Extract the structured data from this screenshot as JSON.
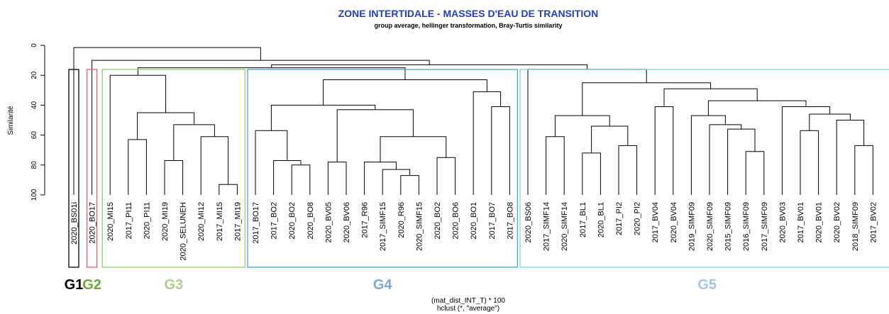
{
  "chart_data": {
    "type": "dendrogram",
    "title": "ZONE INTERTIDALE - MASSES D'EAU DE TRANSITION",
    "subtitle": "group average, hellinger transformation, Bray-Turtis similarity",
    "ylabel": "Similarité",
    "xlabel": "(mat_dist_INT_T) * 100",
    "xlabel2": "hclust (*, \"average\")",
    "ylim": [
      0,
      100
    ],
    "yticks": [
      0,
      20,
      40,
      60,
      80,
      100
    ],
    "leaves": [
      "2020_BS01i",
      "2020_BO17",
      "2020_MI15",
      "2017_PI11",
      "2020_PI11",
      "2020_MI19",
      "2020_SELUNEH",
      "2020_MI12",
      "2017_MI15",
      "2017_MI19",
      "2017_BO17",
      "2017_BO2",
      "2020_BO2",
      "2020_BO8",
      "2020_BV05",
      "2020_BV06",
      "2017_R96",
      "2017_SIMF15",
      "2020_R96",
      "2020_SIMF15",
      "2020_BO2",
      "2020_BO6",
      "2020_BO1",
      "2017_BO7",
      "2017_BO8",
      "2020_BS06",
      "2017_SIMF14",
      "2020_SIMF14",
      "2017_BL1",
      "2020_BL1",
      "2017_PI2",
      "2020_PI2",
      "2017_BV04",
      "2020_BV04",
      "2019_SIMF09",
      "2020_SIMF09",
      "2015_SIMF09",
      "2016_SIMF09",
      "2017_SIMF09",
      "2020_BV03",
      "2017_BV01",
      "2020_BV01",
      "2020_BV02",
      "2018_SIMF09",
      "2017_BV02"
    ],
    "merges": [
      [
        -9,
        -10
      ],
      [
        -8,
        1
      ],
      [
        -6,
        -7
      ],
      [
        -4,
        -5
      ],
      [
        3,
        2
      ],
      [
        4,
        5
      ],
      [
        -3,
        6
      ],
      [
        -13,
        -14
      ],
      [
        -12,
        8
      ],
      [
        -11,
        9
      ],
      [
        -15,
        -16
      ],
      [
        -19,
        -20
      ],
      [
        -18,
        12
      ],
      [
        -17,
        13
      ],
      [
        -21,
        -22
      ],
      [
        14,
        15
      ],
      [
        11,
        16
      ],
      [
        10,
        17
      ],
      [
        -24,
        -25
      ],
      [
        -23,
        19
      ],
      [
        18,
        20
      ],
      [
        -44,
        -45
      ],
      [
        -43,
        22
      ],
      [
        -41,
        -42
      ],
      [
        24,
        23
      ],
      [
        -40,
        25
      ],
      [
        -38,
        -39
      ],
      [
        -37,
        27
      ],
      [
        -36,
        28
      ],
      [
        -35,
        29
      ],
      [
        30,
        26
      ],
      [
        -33,
        -34
      ],
      [
        32,
        31
      ],
      [
        -29,
        -30
      ],
      [
        -31,
        -32
      ],
      [
        34,
        35
      ],
      [
        -27,
        -28
      ],
      [
        37,
        36
      ],
      [
        38,
        33
      ],
      [
        -26,
        39
      ],
      [
        7,
        21
      ],
      [
        41,
        40
      ],
      [
        -2,
        42
      ],
      [
        -1,
        43
      ]
    ],
    "heights": [
      93,
      61,
      77,
      63,
      53,
      45,
      20,
      80,
      77,
      57,
      78,
      87,
      83,
      78,
      75,
      61,
      43,
      40,
      41,
      31,
      23,
      67,
      50,
      57,
      46,
      41,
      71,
      56,
      53,
      47,
      37,
      41,
      29,
      72,
      67,
      54,
      61,
      47,
      25,
      16,
      15,
      13,
      10,
      1.5
    ],
    "groups": [
      {
        "name": "G1",
        "leaf_range": [
          1,
          1
        ],
        "color": "#000000",
        "label_color": "#000000"
      },
      {
        "name": "G2",
        "leaf_range": [
          2,
          2
        ],
        "color": "#e0606e",
        "label_color": "#6aaa3a"
      },
      {
        "name": "G3",
        "leaf_range": [
          3,
          10
        ],
        "color": "#8fce6e",
        "label_color": "#a9d08e"
      },
      {
        "name": "G4",
        "leaf_range": [
          11,
          25
        ],
        "color": "#4aa3c8",
        "label_color": "#7ba7d4"
      },
      {
        "name": "G5",
        "leaf_range": [
          26,
          45
        ],
        "color": "#7fd3e6",
        "label_color": "#a7c4e0"
      }
    ],
    "title_color": "#1f3fbf"
  }
}
